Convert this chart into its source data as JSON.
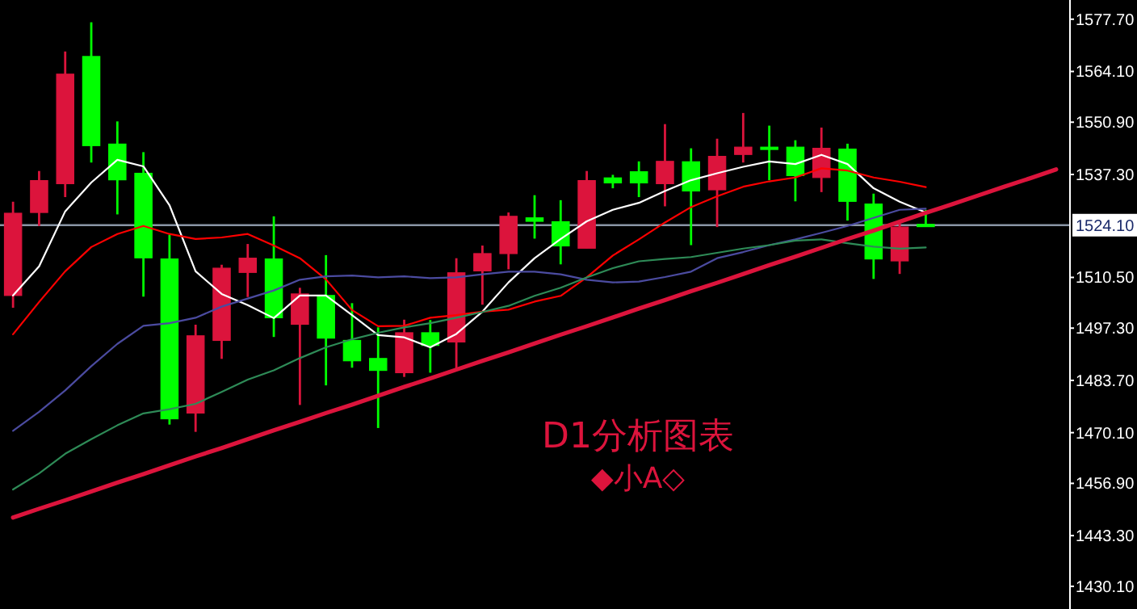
{
  "chart_data": {
    "type": "candlestick",
    "categories": [
      null,
      null,
      null,
      null,
      null,
      null,
      null,
      null,
      null,
      null,
      null,
      null,
      null,
      null,
      null,
      null,
      null,
      null,
      null,
      null,
      null,
      null,
      null,
      null,
      null,
      null,
      null,
      null,
      null,
      null,
      null,
      null,
      null,
      null,
      null,
      null,
      null,
      null,
      null,
      null,
      null
    ],
    "ohlc": [
      [
        1505.8,
        1530.2,
        1502.6,
        1527.2
      ],
      [
        1527.4,
        1538.2,
        1523.9,
        1535.7
      ],
      [
        1534.9,
        1569.3,
        1531.4,
        1563.4
      ],
      [
        1568.0,
        1576.9,
        1540.4,
        1544.8
      ],
      [
        1545.2,
        1551.1,
        1526.9,
        1535.9
      ],
      [
        1537.6,
        1543.1,
        1505.5,
        1515.6
      ],
      [
        1515.3,
        1521.6,
        1472.2,
        1473.7
      ],
      [
        1475.2,
        1498.2,
        1470.3,
        1495.3
      ],
      [
        1494.1,
        1513.8,
        1489.3,
        1512.9
      ],
      [
        1511.8,
        1519.2,
        1505.4,
        1515.5
      ],
      [
        1515.3,
        1526.4,
        1495.0,
        1500.0
      ],
      [
        1498.3,
        1507.8,
        1477.3,
        1506.2
      ],
      [
        1505.8,
        1516.3,
        1482.4,
        1494.7
      ],
      [
        1494.1,
        1503.8,
        1487.0,
        1488.8
      ],
      [
        1489.4,
        1497.5,
        1471.3,
        1486.3
      ],
      [
        1485.7,
        1499.5,
        1484.6,
        1496.1
      ],
      [
        1496.1,
        1499.4,
        1485.7,
        1492.8
      ],
      [
        1493.7,
        1515.5,
        1486.3,
        1511.7
      ],
      [
        1512.2,
        1518.8,
        1503.4,
        1516.7
      ],
      [
        1516.7,
        1527.4,
        1512.6,
        1526.4
      ],
      [
        1526.0,
        1531.9,
        1520.6,
        1525.1
      ],
      [
        1525.0,
        1530.6,
        1513.9,
        1518.7
      ],
      [
        1518.1,
        1538.2,
        1518.1,
        1535.7
      ],
      [
        1536.4,
        1537.2,
        1533.7,
        1535.1
      ],
      [
        1538.0,
        1540.7,
        1531.4,
        1535.1
      ],
      [
        1534.9,
        1550.4,
        1529.0,
        1540.7
      ],
      [
        1540.6,
        1544.1,
        1518.9,
        1533.0
      ],
      [
        1533.3,
        1546.6,
        1523.6,
        1542.0
      ],
      [
        1542.5,
        1553.3,
        1540.4,
        1544.4
      ],
      [
        1544.4,
        1550.0,
        1535.8,
        1543.8
      ],
      [
        1544.4,
        1546.2,
        1530.3,
        1537.0
      ],
      [
        1536.5,
        1549.5,
        1532.7,
        1544.1
      ],
      [
        1543.9,
        1545.3,
        1525.3,
        1530.3
      ],
      [
        1529.6,
        1532.3,
        1510.1,
        1515.3
      ],
      [
        1514.8,
        1525.3,
        1511.4,
        1523.6
      ],
      [
        1524.3,
        1528.1,
        1523.9,
        1524.1
      ],
      null,
      null,
      null,
      null,
      null
    ],
    "colors": [
      "#dc143c",
      "#dc143c",
      "#dc143c",
      "#00ff00",
      "#00ff00",
      "#00ff00",
      "#00ff00",
      "#dc143c",
      "#dc143c",
      "#dc143c",
      "#00ff00",
      "#dc143c",
      "#00ff00",
      "#00ff00",
      "#00ff00",
      "#dc143c",
      "#00ff00",
      "#dc143c",
      "#dc143c",
      "#dc143c",
      "#00ff00",
      "#00ff00",
      "#dc143c",
      "#00ff00",
      "#00ff00",
      "#dc143c",
      "#00ff00",
      "#dc143c",
      "#dc143c",
      "#00ff00",
      "#00ff00",
      "#dc143c",
      "#00ff00",
      "#00ff00",
      "#dc143c",
      "#00ff00",
      null,
      null,
      null,
      null,
      null
    ],
    "series": [
      {
        "type": "line",
        "color": "#ffffff",
        "values": [
          1505.8,
          1513.4,
          1527.7,
          1535.2,
          1541.1,
          1539.4,
          1529.3,
          1512.1,
          1506.2,
          1503.3,
          1499.9,
          1505.8,
          1505.8,
          1500.7,
          1495.5,
          1494.9,
          1492.3,
          1495.8,
          1501.6,
          1509.2,
          1515.5,
          1520.5,
          1525.1,
          1528.1,
          1529.9,
          1533.0,
          1535.8,
          1537.6,
          1539.3,
          1540.7,
          1540.0,
          1542.4,
          1540.0,
          1533.7,
          1530.2,
          1527.4,
          null,
          null,
          null,
          null,
          null
        ]
      },
      {
        "type": "line",
        "color": "#ff0000",
        "values": [
          1495.7,
          1504.1,
          1512.1,
          1518.4,
          1521.8,
          1523.9,
          1521.8,
          1520.5,
          1520.9,
          1521.8,
          1518.8,
          1515.5,
          1510.0,
          1502.0,
          1497.8,
          1497.9,
          1500.0,
          1500.7,
          1501.6,
          1502.1,
          1504.2,
          1505.7,
          1510.5,
          1516.2,
          1520.4,
          1524.8,
          1528.8,
          1531.6,
          1534.1,
          1535.5,
          1536.5,
          1538.9,
          1538.3,
          1536.5,
          1535.4,
          1534.0,
          null,
          null,
          null,
          null,
          null
        ]
      },
      {
        "type": "line",
        "color": "#4b4ba0",
        "values": [
          1470.6,
          1475.5,
          1481.1,
          1487.4,
          1493.2,
          1497.9,
          1498.6,
          1500.0,
          1502.9,
          1505.0,
          1507.1,
          1509.9,
          1510.8,
          1511.0,
          1510.5,
          1510.8,
          1510.3,
          1510.5,
          1511.3,
          1512.0,
          1512.0,
          1511.3,
          1509.9,
          1509.2,
          1509.4,
          1510.6,
          1512.0,
          1515.5,
          1517.1,
          1518.9,
          1520.4,
          1522.1,
          1523.9,
          1526.0,
          1528.1,
          1528.4,
          null,
          null,
          null,
          null,
          null
        ]
      },
      {
        "type": "line",
        "color": "#2e8b57",
        "values": [
          1455.3,
          1459.5,
          1464.6,
          1468.4,
          1472.0,
          1475.1,
          1476.2,
          1477.6,
          1480.7,
          1483.9,
          1486.3,
          1489.5,
          1492.3,
          1494.4,
          1496.1,
          1497.5,
          1498.6,
          1500.0,
          1501.5,
          1503.1,
          1505.7,
          1507.8,
          1510.5,
          1512.9,
          1514.7,
          1515.3,
          1515.8,
          1516.9,
          1518.0,
          1518.9,
          1520.1,
          1520.4,
          1519.4,
          1518.5,
          1518.0,
          1518.3,
          null,
          null,
          null,
          null,
          null
        ]
      },
      {
        "type": "line",
        "color": "#dc143c",
        "values": [
          1448.0,
          1450.3,
          1452.5,
          1454.8,
          1457.1,
          1459.3,
          1461.6,
          1463.9,
          1466.1,
          1468.4,
          1470.7,
          1472.9,
          1475.2,
          1477.4,
          1479.7,
          1482.0,
          1484.2,
          1486.5,
          1488.8,
          1491.0,
          1493.3,
          1495.6,
          1497.8,
          1500.1,
          1502.4,
          1504.6,
          1506.9,
          1509.1,
          1511.4,
          1513.7,
          1515.9,
          1518.2,
          1520.5,
          1522.7,
          1525.0,
          1527.3,
          1529.5,
          1531.8,
          1534.1,
          1536.3,
          1538.6
        ]
      }
    ],
    "ylim": [
      1424.2,
      1582.7
    ],
    "yticks": [
      {
        "value": 1577.7,
        "label": "1577.70"
      },
      {
        "value": 1564.1,
        "label": "1564.10"
      },
      {
        "value": 1550.9,
        "label": "1550.90"
      },
      {
        "value": 1537.3,
        "label": "1537.30"
      },
      {
        "value": 1510.5,
        "label": "1510.50"
      },
      {
        "value": 1497.3,
        "label": "1497.30"
      },
      {
        "value": 1483.7,
        "label": "1483.70"
      },
      {
        "value": 1470.1,
        "label": "1470.10"
      },
      {
        "value": 1456.9,
        "label": "1456.90"
      },
      {
        "value": 1443.3,
        "label": "1443.30"
      },
      {
        "value": 1430.1,
        "label": "1430.10"
      }
    ],
    "ref_lines": [
      {
        "axis": "y",
        "value": 1524.1,
        "label": "1524.10",
        "color": "#8a96a6"
      }
    ],
    "annotations": [
      "D1分析图表",
      "◆小A◇"
    ],
    "tick_labels": "y",
    "grid": false
  }
}
